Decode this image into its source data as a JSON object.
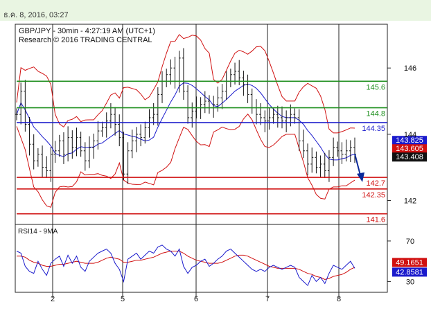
{
  "header": {
    "timestamp": "ธ.ค. 8, 2016, 03:27"
  },
  "chart_data": [
    {
      "type": "line",
      "title": "GBP/JPY - 30min - 4:27:19 AM (UTC+1)",
      "subtitle": "Research © 2016 TRADING CENTRAL",
      "x_ticks": [
        "2",
        "5",
        "6",
        "7",
        "8"
      ],
      "y_ticks": [
        "146",
        "144",
        "142"
      ],
      "ylim": [
        141.3,
        147.3
      ],
      "levels": [
        {
          "value": 145.6,
          "label": "145.6",
          "color": "#1f8f1f"
        },
        {
          "value": 144.8,
          "label": "144.8",
          "color": "#1f8f1f"
        },
        {
          "value": 144.35,
          "label": "144.35",
          "color": "#1a1acc"
        },
        {
          "value": 142.7,
          "label": "142.7",
          "color": "#d01010"
        },
        {
          "value": 142.35,
          "label": "142.35",
          "color": "#d01010"
        },
        {
          "value": 141.6,
          "label": "141.6",
          "color": "#d01010"
        }
      ],
      "price_tags": [
        {
          "value": 143.825,
          "label": "143.825",
          "color": "#1a1acc"
        },
        {
          "value": 143.605,
          "label": "143.605",
          "color": "#d01010"
        },
        {
          "value": 143.408,
          "label": "143.408",
          "color": "#111111"
        }
      ],
      "close_series": [
        144.6,
        145.3,
        144.3,
        143.7,
        143.2,
        143.4,
        143.0,
        142.9,
        143.4,
        143.5,
        143.8,
        143.4,
        143.9,
        143.6,
        143.9,
        143.5,
        143.2,
        143.6,
        143.8,
        144.1,
        144.2,
        144.4,
        144.6,
        144.3,
        143.9,
        142.8,
        143.5,
        143.8,
        144.0,
        143.9,
        144.2,
        144.5,
        144.6,
        145.2,
        145.6,
        145.8,
        146.0,
        145.6,
        146.3,
        145.3,
        144.5,
        144.7,
        144.8,
        144.9,
        145.0,
        144.8,
        144.9,
        145.1,
        145.3,
        145.6,
        145.8,
        145.9,
        145.7,
        145.5,
        145.2,
        144.8,
        144.6,
        144.5,
        144.4,
        144.5,
        144.6,
        144.5,
        144.4,
        144.5,
        144.6,
        144.5,
        143.8,
        143.5,
        143.1,
        143.3,
        143.0,
        143.1,
        142.9,
        143.3,
        143.6,
        143.5,
        143.4,
        143.5,
        143.6,
        143.4
      ],
      "forecast": {
        "from": 143.408,
        "to": 142.6
      },
      "rsi": {
        "title": "RSI14 - 9MA",
        "y_ticks": [
          "70",
          "30"
        ],
        "ylim": [
          20,
          85
        ],
        "tags": [
          {
            "value": 49.1651,
            "label": "49.1651",
            "color": "#d01010"
          },
          {
            "value": 42.8581,
            "label": "42.8581",
            "color": "#1a1acc"
          }
        ],
        "rsi_series": [
          60,
          58,
          45,
          40,
          38,
          50,
          42,
          36,
          48,
          52,
          55,
          45,
          56,
          48,
          55,
          44,
          40,
          50,
          54,
          58,
          60,
          62,
          58,
          48,
          42,
          30,
          52,
          55,
          58,
          52,
          56,
          60,
          58,
          64,
          66,
          62,
          60,
          55,
          62,
          45,
          38,
          44,
          46,
          50,
          52,
          45,
          48,
          52,
          55,
          60,
          62,
          58,
          54,
          50,
          46,
          42,
          40,
          42,
          40,
          44,
          46,
          44,
          42,
          44,
          46,
          44,
          34,
          30,
          26,
          36,
          30,
          34,
          28,
          38,
          46,
          44,
          42,
          46,
          50,
          43
        ],
        "ma_series": [
          55,
          55,
          54,
          51,
          49,
          48,
          46,
          45,
          45,
          46,
          47,
          47,
          48,
          49,
          50,
          49,
          48,
          48,
          48,
          49,
          51,
          53,
          54,
          53,
          52,
          49,
          49,
          50,
          51,
          51,
          52,
          53,
          54,
          56,
          58,
          59,
          60,
          60,
          60,
          58,
          55,
          53,
          51,
          50,
          49,
          48,
          48,
          48,
          49,
          51,
          53,
          55,
          56,
          56,
          55,
          53,
          51,
          49,
          47,
          45,
          44,
          43,
          43,
          43,
          43,
          43,
          42,
          40,
          38,
          37,
          35,
          34,
          32,
          33,
          35,
          36,
          37,
          39,
          42,
          44
        ]
      }
    }
  ]
}
